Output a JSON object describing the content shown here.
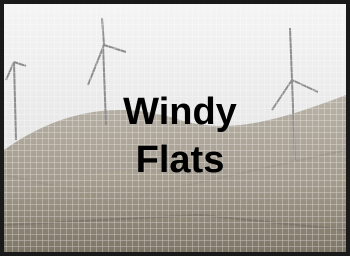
{
  "slide": {
    "title_lines": [
      "Windy",
      "Flats"
    ]
  }
}
